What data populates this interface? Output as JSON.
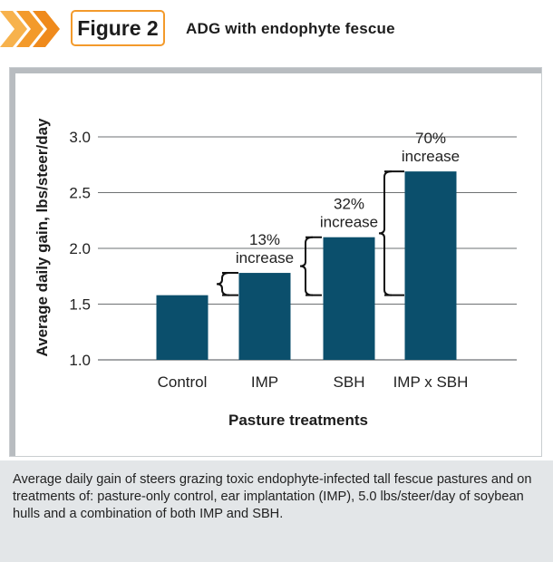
{
  "figure": {
    "badge_label": "Figure 2",
    "title": "ADG with endophyte fescue",
    "caption": "Average daily gain of steers grazing toxic endophyte-infected tall fescue pastures and on treatments of: pasture-only control, ear implantation (IMP), 5.0 lbs/steer/day of soybean hulls and a combination of both IMP and SBH."
  },
  "colors": {
    "bar": "#0b4f6c",
    "accent": "#f39a2b",
    "grid": "#6e7173",
    "caption_bg": "#e3e6e8"
  },
  "chart_data": {
    "type": "bar",
    "categories": [
      "Control",
      "IMP",
      "SBH",
      "IMP x SBH"
    ],
    "values": [
      1.58,
      1.78,
      2.1,
      2.69
    ],
    "xlabel": "Pasture treatments",
    "ylabel": "Average daily gain, lbs/steer/day",
    "ylim": [
      1.0,
      3.0
    ],
    "yticks": [
      "1.0",
      "1.5",
      "2.0",
      "2.5",
      "3.0"
    ],
    "grid": true,
    "annotations": [
      {
        "from_category": "Control",
        "to_category": "IMP",
        "pct": "13%",
        "word": "increase"
      },
      {
        "from_category": "Control",
        "to_category": "SBH",
        "pct": "32%",
        "word": "increase"
      },
      {
        "from_category": "Control",
        "to_category": "IMP x SBH",
        "pct": "70%",
        "word": "increase"
      }
    ]
  }
}
